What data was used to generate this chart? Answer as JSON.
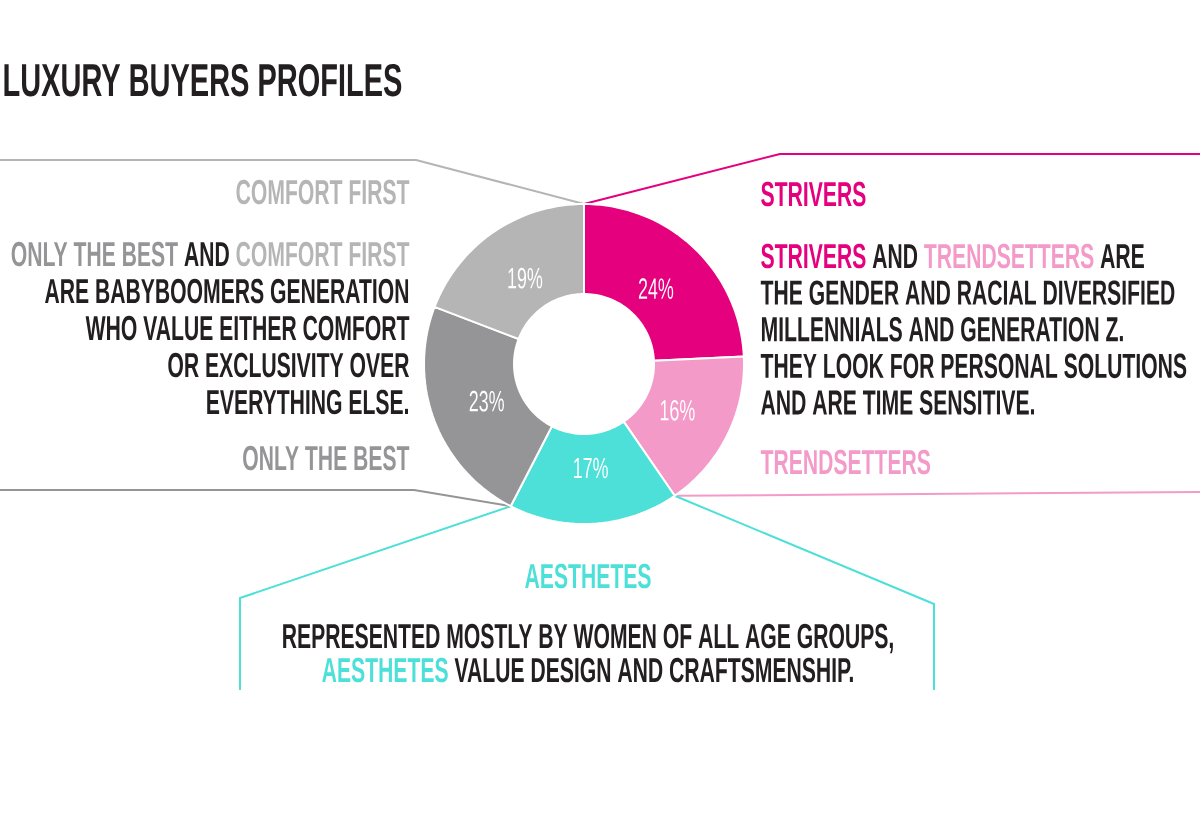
{
  "chart_data": {
    "type": "donut",
    "title": "LUXURY BUYERS PROFILES",
    "categories": [
      "STRIVERS",
      "TRENDSETTERS",
      "AESTHETES",
      "ONLY THE BEST",
      "COMFORT FIRST"
    ],
    "values": [
      24,
      16,
      17,
      23,
      19
    ],
    "colors": [
      "#e5007e",
      "#f49ac9",
      "#4ce0d8",
      "#959597",
      "#b5b5b6"
    ],
    "value_labels": [
      "24%",
      "16%",
      "17%",
      "23%",
      "19%"
    ],
    "annotations": [
      "ONLY THE BEST",
      "AND",
      "COMFORT FIRST",
      "ARE BABYBOOMERS GENERATION",
      "WHO VALUE EITHER COMFORT",
      "OR EXCLUSIVITY OVER",
      "EVERYTHING ELSE.",
      "STRIVERS",
      "AND",
      "TRENDSETTERS",
      "ARE",
      "THE GENDER AND RACIAL DIVERSIFIED",
      "MILLENNIALS AND GENERATION Z.",
      "THEY LOOK FOR PERSONAL SOLUTIONS",
      "AND ARE TIME SENSITIVE.",
      "REPRESENTED MOSTLY BY WOMEN OF ALL AGE GROUPS,",
      "AESTHETES",
      "VALUE DESIGN AND CRAFTSMENSHIP."
    ]
  }
}
